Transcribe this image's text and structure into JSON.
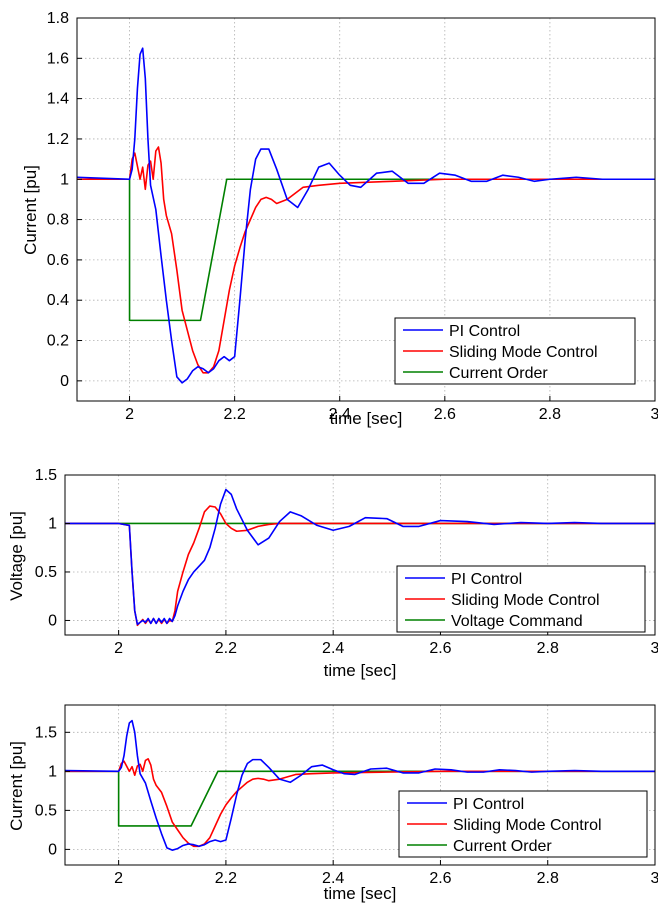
{
  "chart_data": [
    {
      "type": "line",
      "xlabel": "time [sec]",
      "ylabel": "Current [pu]",
      "xlim": [
        1.9,
        3.0
      ],
      "ylim": [
        -0.1,
        1.8
      ],
      "xticks": [
        2,
        2.2,
        2.4,
        2.6,
        2.8,
        3
      ],
      "xtick_labels": [
        "2",
        "2.2",
        "2.4",
        "2.6",
        "2.8",
        "3"
      ],
      "yticks": [
        0,
        0.2,
        0.4,
        0.6,
        0.8,
        1,
        1.2,
        1.4,
        1.6,
        1.8
      ],
      "ytick_labels": [
        "0",
        "0.2",
        "0.4",
        "0.6",
        "0.8",
        "1",
        "1.2",
        "1.4",
        "1.6",
        "1.8"
      ],
      "grid": true,
      "legend": "bottom-right",
      "series": [
        {
          "name": "PI Control",
          "color": "#0000ff",
          "x": [
            1.9,
            2.0,
            2.005,
            2.01,
            2.015,
            2.02,
            2.025,
            2.03,
            2.035,
            2.04,
            2.05,
            2.06,
            2.07,
            2.08,
            2.09,
            2.1,
            2.11,
            2.12,
            2.13,
            2.14,
            2.15,
            2.16,
            2.17,
            2.18,
            2.19,
            2.2,
            2.21,
            2.22,
            2.23,
            2.24,
            2.25,
            2.265,
            2.28,
            2.3,
            2.32,
            2.34,
            2.36,
            2.38,
            2.4,
            2.42,
            2.44,
            2.47,
            2.5,
            2.53,
            2.56,
            2.59,
            2.62,
            2.65,
            2.68,
            2.71,
            2.74,
            2.77,
            2.8,
            2.85,
            2.9,
            2.95,
            3.0
          ],
          "y": [
            1.01,
            1.0,
            1.05,
            1.2,
            1.45,
            1.62,
            1.65,
            1.5,
            1.2,
            0.97,
            0.85,
            0.62,
            0.4,
            0.2,
            0.02,
            -0.01,
            0.01,
            0.05,
            0.07,
            0.06,
            0.04,
            0.06,
            0.1,
            0.12,
            0.1,
            0.12,
            0.4,
            0.7,
            0.95,
            1.1,
            1.15,
            1.15,
            1.05,
            0.9,
            0.86,
            0.95,
            1.06,
            1.08,
            1.02,
            0.97,
            0.96,
            1.03,
            1.04,
            0.98,
            0.98,
            1.03,
            1.02,
            0.99,
            0.99,
            1.02,
            1.01,
            0.99,
            1.0,
            1.01,
            1.0,
            1.0,
            1.0
          ]
        },
        {
          "name": "Sliding Mode Control",
          "color": "#ff0000",
          "x": [
            1.9,
            2.0,
            2.005,
            2.01,
            2.02,
            2.025,
            2.03,
            2.035,
            2.04,
            2.045,
            2.05,
            2.055,
            2.06,
            2.065,
            2.07,
            2.08,
            2.09,
            2.1,
            2.11,
            2.12,
            2.13,
            2.14,
            2.15,
            2.16,
            2.17,
            2.18,
            2.19,
            2.2,
            2.21,
            2.22,
            2.23,
            2.24,
            2.25,
            2.26,
            2.27,
            2.28,
            2.3,
            2.33,
            2.36,
            2.4,
            2.5,
            2.6,
            3.0
          ],
          "y": [
            1.0,
            1.0,
            1.1,
            1.13,
            1.0,
            1.06,
            0.95,
            1.07,
            1.09,
            1.0,
            1.14,
            1.16,
            1.08,
            0.9,
            0.82,
            0.73,
            0.55,
            0.35,
            0.25,
            0.15,
            0.08,
            0.04,
            0.04,
            0.07,
            0.15,
            0.3,
            0.45,
            0.57,
            0.66,
            0.74,
            0.8,
            0.86,
            0.9,
            0.91,
            0.9,
            0.88,
            0.9,
            0.96,
            0.97,
            0.98,
            0.99,
            1.0,
            1.0
          ]
        },
        {
          "name": "Current Order",
          "color": "#008000",
          "x": [
            1.9,
            2.0,
            2.0,
            2.135,
            2.185,
            3.0
          ],
          "y": [
            1.0,
            1.0,
            0.3,
            0.3,
            1.0,
            1.0
          ]
        }
      ]
    },
    {
      "type": "line",
      "xlabel": "time [sec]",
      "ylabel": "Voltage [pu]",
      "xlim": [
        1.9,
        3.0
      ],
      "ylim": [
        -0.15,
        1.5
      ],
      "xticks": [
        2,
        2.2,
        2.4,
        2.6,
        2.8,
        3
      ],
      "xtick_labels": [
        "2",
        "2.2",
        "2.4",
        "2.6",
        "2.8",
        "3"
      ],
      "yticks": [
        0,
        0.5,
        1,
        1.5
      ],
      "ytick_labels": [
        "0",
        "0.5",
        "1",
        "1.5"
      ],
      "grid": true,
      "legend": "bottom-right",
      "series": [
        {
          "name": "PI Control",
          "color": "#0000ff",
          "x": [
            1.9,
            2.0,
            2.02,
            2.025,
            2.03,
            2.035,
            2.04,
            2.045,
            2.05,
            2.055,
            2.06,
            2.065,
            2.07,
            2.075,
            2.08,
            2.085,
            2.09,
            2.095,
            2.1,
            2.105,
            2.11,
            2.12,
            2.13,
            2.14,
            2.15,
            2.16,
            2.17,
            2.18,
            2.19,
            2.2,
            2.21,
            2.22,
            2.24,
            2.26,
            2.28,
            2.3,
            2.32,
            2.34,
            2.37,
            2.4,
            2.43,
            2.46,
            2.5,
            2.53,
            2.56,
            2.6,
            2.65,
            2.7,
            2.75,
            2.8,
            2.85,
            2.9,
            2.95,
            3.0
          ],
          "y": [
            1.0,
            1.0,
            0.98,
            0.5,
            0.1,
            -0.04,
            -0.02,
            0.0,
            -0.02,
            0.02,
            -0.03,
            0.02,
            -0.03,
            0.02,
            -0.02,
            0.02,
            -0.03,
            0.02,
            -0.01,
            0.05,
            0.15,
            0.3,
            0.42,
            0.5,
            0.56,
            0.62,
            0.75,
            0.95,
            1.2,
            1.35,
            1.3,
            1.15,
            0.93,
            0.78,
            0.85,
            1.02,
            1.12,
            1.08,
            0.98,
            0.93,
            0.97,
            1.06,
            1.05,
            0.97,
            0.97,
            1.03,
            1.02,
            0.99,
            1.01,
            1.0,
            1.01,
            1.0,
            1.0,
            1.0
          ]
        },
        {
          "name": "Sliding Mode Control",
          "color": "#ff0000",
          "x": [
            1.9,
            2.0,
            2.02,
            2.025,
            2.03,
            2.035,
            2.04,
            2.045,
            2.05,
            2.055,
            2.06,
            2.065,
            2.07,
            2.075,
            2.08,
            2.085,
            2.09,
            2.095,
            2.1,
            2.105,
            2.11,
            2.12,
            2.13,
            2.14,
            2.15,
            2.16,
            2.17,
            2.18,
            2.19,
            2.2,
            2.21,
            2.22,
            2.24,
            2.26,
            2.28,
            2.3,
            2.35,
            2.4,
            3.0
          ],
          "y": [
            1.0,
            1.0,
            0.98,
            0.5,
            0.1,
            -0.05,
            -0.02,
            0.01,
            -0.03,
            0.01,
            -0.03,
            0.02,
            -0.03,
            0.01,
            -0.03,
            0.01,
            -0.03,
            0.0,
            -0.01,
            0.1,
            0.3,
            0.5,
            0.68,
            0.8,
            0.95,
            1.12,
            1.18,
            1.17,
            1.1,
            1.0,
            0.95,
            0.92,
            0.93,
            0.97,
            0.99,
            1.0,
            1.0,
            1.0,
            1.0
          ]
        },
        {
          "name": "Voltage Command",
          "color": "#008000",
          "x": [
            1.9,
            3.0
          ],
          "y": [
            1.0,
            1.0
          ]
        }
      ]
    },
    {
      "type": "line",
      "xlabel": "time [sec]",
      "ylabel": "Current [pu]",
      "xlim": [
        1.9,
        3.0
      ],
      "ylim": [
        -0.2,
        1.85
      ],
      "xticks": [
        2,
        2.2,
        2.4,
        2.6,
        2.8,
        3
      ],
      "xtick_labels": [
        "2",
        "2.2",
        "2.4",
        "2.6",
        "2.8",
        "3"
      ],
      "yticks": [
        0,
        0.5,
        1,
        1.5
      ],
      "ytick_labels": [
        "0",
        "0.5",
        "1",
        "1.5"
      ],
      "grid": true,
      "legend": "bottom-right",
      "series": [
        {
          "name": "PI Control",
          "color": "#0000ff",
          "x": [
            1.9,
            2.0,
            2.005,
            2.01,
            2.015,
            2.02,
            2.025,
            2.03,
            2.035,
            2.04,
            2.05,
            2.06,
            2.07,
            2.08,
            2.09,
            2.1,
            2.11,
            2.12,
            2.13,
            2.14,
            2.15,
            2.16,
            2.17,
            2.18,
            2.19,
            2.2,
            2.21,
            2.22,
            2.23,
            2.24,
            2.25,
            2.265,
            2.28,
            2.3,
            2.32,
            2.34,
            2.36,
            2.38,
            2.4,
            2.42,
            2.44,
            2.47,
            2.5,
            2.53,
            2.56,
            2.59,
            2.62,
            2.65,
            2.68,
            2.71,
            2.74,
            2.77,
            2.8,
            2.85,
            2.9,
            2.95,
            3.0
          ],
          "y": [
            1.01,
            1.0,
            1.05,
            1.2,
            1.45,
            1.62,
            1.65,
            1.5,
            1.2,
            0.97,
            0.85,
            0.62,
            0.4,
            0.2,
            0.02,
            -0.01,
            0.01,
            0.05,
            0.07,
            0.06,
            0.04,
            0.06,
            0.1,
            0.12,
            0.1,
            0.12,
            0.4,
            0.7,
            0.95,
            1.1,
            1.15,
            1.15,
            1.05,
            0.9,
            0.86,
            0.95,
            1.06,
            1.08,
            1.02,
            0.97,
            0.96,
            1.03,
            1.04,
            0.98,
            0.98,
            1.03,
            1.02,
            0.99,
            0.99,
            1.02,
            1.01,
            0.99,
            1.0,
            1.01,
            1.0,
            1.0,
            1.0
          ]
        },
        {
          "name": "Sliding Mode Control",
          "color": "#ff0000",
          "x": [
            1.9,
            2.0,
            2.005,
            2.01,
            2.02,
            2.025,
            2.03,
            2.035,
            2.04,
            2.045,
            2.05,
            2.055,
            2.06,
            2.065,
            2.07,
            2.08,
            2.09,
            2.1,
            2.11,
            2.12,
            2.13,
            2.14,
            2.15,
            2.16,
            2.17,
            2.18,
            2.19,
            2.2,
            2.21,
            2.22,
            2.23,
            2.24,
            2.25,
            2.26,
            2.27,
            2.28,
            2.3,
            2.33,
            2.36,
            2.4,
            2.5,
            2.6,
            3.0
          ],
          "y": [
            1.0,
            1.0,
            1.1,
            1.13,
            1.0,
            1.06,
            0.95,
            1.07,
            1.09,
            1.0,
            1.14,
            1.16,
            1.08,
            0.9,
            0.82,
            0.73,
            0.55,
            0.35,
            0.25,
            0.15,
            0.08,
            0.04,
            0.04,
            0.07,
            0.15,
            0.3,
            0.45,
            0.57,
            0.66,
            0.74,
            0.8,
            0.86,
            0.9,
            0.91,
            0.9,
            0.88,
            0.9,
            0.96,
            0.97,
            0.98,
            0.99,
            1.0,
            1.0
          ]
        },
        {
          "name": "Current Order",
          "color": "#008000",
          "x": [
            1.9,
            2.0,
            2.0,
            2.135,
            2.185,
            3.0
          ],
          "y": [
            1.0,
            1.0,
            0.3,
            0.3,
            1.0,
            1.0
          ]
        }
      ]
    }
  ]
}
